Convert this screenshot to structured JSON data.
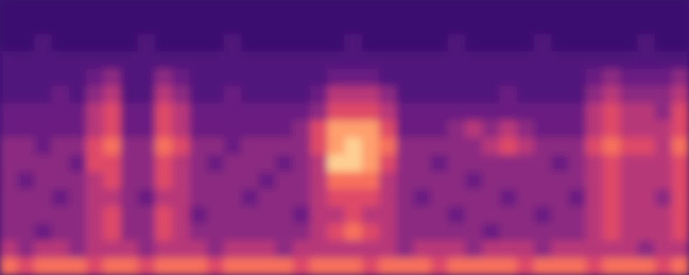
{
  "chart_data": {
    "type": "heatmap",
    "tick_labels": false,
    "zlim": [
      0,
      10
    ],
    "cells": [
      [
        1,
        1,
        1,
        1,
        1,
        1,
        1,
        1,
        1,
        1,
        1,
        1,
        1,
        1,
        1,
        1,
        1,
        1,
        1,
        1,
        1,
        1,
        1,
        1,
        1,
        1,
        1,
        1,
        1,
        1,
        1,
        1,
        1,
        1,
        1,
        1,
        1,
        1,
        1,
        1
      ],
      [
        1,
        1,
        1,
        1,
        1,
        1,
        1,
        1,
        1,
        1,
        1,
        1,
        1,
        1,
        1,
        1,
        1,
        1,
        1,
        1,
        1,
        1,
        1,
        1,
        1,
        1,
        1,
        1,
        1,
        1,
        1,
        1,
        1,
        1,
        1,
        1,
        1,
        1,
        1,
        1
      ],
      [
        1,
        1,
        2,
        1,
        1,
        1,
        1,
        1,
        2,
        1,
        1,
        1,
        1,
        2,
        1,
        1,
        1,
        1,
        1,
        1,
        2,
        1,
        1,
        1,
        1,
        1,
        2,
        1,
        1,
        1,
        1,
        2,
        1,
        1,
        1,
        1,
        1,
        2,
        1,
        1
      ],
      [
        2,
        2,
        2,
        2,
        2,
        2,
        2,
        2,
        2,
        2,
        2,
        2,
        2,
        2,
        2,
        2,
        2,
        2,
        2,
        2,
        2,
        2,
        2,
        2,
        2,
        2,
        2,
        2,
        2,
        2,
        2,
        2,
        2,
        2,
        2,
        2,
        2,
        2,
        2,
        2
      ],
      [
        2,
        2,
        2,
        2,
        2,
        3,
        4,
        2,
        2,
        4,
        3,
        2,
        2,
        2,
        2,
        2,
        2,
        2,
        2,
        3,
        3,
        3,
        2,
        2,
        2,
        2,
        2,
        2,
        2,
        2,
        2,
        2,
        2,
        2,
        3,
        4,
        3,
        3,
        3,
        4
      ],
      [
        2,
        2,
        2,
        3,
        2,
        4,
        5,
        2,
        2,
        5,
        4,
        2,
        2,
        3,
        2,
        2,
        2,
        2,
        3,
        5,
        5,
        5,
        4,
        2,
        2,
        2,
        2,
        2,
        2,
        3,
        2,
        2,
        2,
        2,
        4,
        5,
        4,
        4,
        4,
        5
      ],
      [
        3,
        3,
        3,
        3,
        3,
        5,
        6,
        3,
        3,
        6,
        5,
        3,
        3,
        3,
        3,
        3,
        3,
        3,
        4,
        6,
        6,
        6,
        5,
        3,
        3,
        3,
        3,
        3,
        3,
        3,
        3,
        3,
        3,
        3,
        5,
        6,
        5,
        5,
        4,
        6
      ],
      [
        3,
        3,
        3,
        3,
        3,
        5,
        6,
        3,
        3,
        6,
        5,
        3,
        3,
        3,
        3,
        3,
        3,
        4,
        6,
        8,
        8,
        8,
        6,
        3,
        3,
        3,
        4,
        5,
        4,
        5,
        4,
        3,
        3,
        3,
        5,
        6,
        5,
        5,
        5,
        6
      ],
      [
        4,
        4,
        3,
        4,
        4,
        6,
        7,
        4,
        4,
        7,
        6,
        4,
        4,
        3,
        4,
        4,
        4,
        4,
        6,
        8,
        9,
        8,
        7,
        4,
        4,
        4,
        4,
        4,
        5,
        6,
        5,
        4,
        4,
        4,
        6,
        7,
        6,
        6,
        5,
        7
      ],
      [
        4,
        4,
        4,
        4,
        3,
        6,
        6,
        4,
        4,
        6,
        5,
        4,
        3,
        4,
        4,
        4,
        3,
        4,
        5,
        9,
        9,
        8,
        6,
        4,
        4,
        3,
        4,
        4,
        4,
        4,
        4,
        4,
        3,
        4,
        5,
        6,
        5,
        5,
        5,
        6
      ],
      [
        4,
        3,
        4,
        4,
        4,
        5,
        6,
        4,
        4,
        6,
        5,
        4,
        4,
        4,
        4,
        3,
        4,
        4,
        5,
        7,
        7,
        7,
        5,
        4,
        4,
        4,
        4,
        3,
        4,
        4,
        4,
        4,
        4,
        4,
        5,
        6,
        5,
        5,
        5,
        6
      ],
      [
        4,
        4,
        4,
        3,
        4,
        5,
        5,
        4,
        3,
        5,
        5,
        4,
        4,
        4,
        3,
        4,
        4,
        4,
        5,
        6,
        6,
        6,
        5,
        4,
        3,
        4,
        4,
        4,
        4,
        3,
        4,
        4,
        4,
        3,
        5,
        6,
        5,
        5,
        4,
        6
      ],
      [
        4,
        4,
        4,
        4,
        4,
        5,
        6,
        4,
        4,
        6,
        5,
        3,
        4,
        4,
        4,
        4,
        4,
        3,
        5,
        5,
        6,
        5,
        5,
        4,
        4,
        4,
        3,
        4,
        4,
        4,
        4,
        3,
        4,
        4,
        5,
        6,
        5,
        5,
        5,
        6
      ],
      [
        4,
        4,
        3,
        4,
        4,
        5,
        6,
        4,
        4,
        6,
        5,
        4,
        4,
        4,
        4,
        4,
        4,
        4,
        5,
        6,
        7,
        6,
        5,
        4,
        4,
        4,
        4,
        4,
        3,
        4,
        4,
        4,
        4,
        4,
        5,
        6,
        5,
        5,
        5,
        6
      ],
      [
        5,
        4,
        5,
        5,
        4,
        5,
        5,
        5,
        4,
        5,
        5,
        5,
        4,
        5,
        5,
        5,
        4,
        5,
        5,
        5,
        5,
        5,
        5,
        4,
        5,
        5,
        5,
        4,
        5,
        5,
        5,
        4,
        5,
        5,
        5,
        5,
        5,
        4,
        5,
        5
      ],
      [
        7,
        6,
        7,
        7,
        7,
        6,
        7,
        7,
        6,
        7,
        7,
        7,
        6,
        7,
        7,
        7,
        7,
        6,
        7,
        7,
        7,
        6,
        7,
        7,
        7,
        6,
        7,
        7,
        7,
        7,
        6,
        7,
        7,
        7,
        6,
        7,
        7,
        7,
        6,
        7
      ]
    ]
  }
}
